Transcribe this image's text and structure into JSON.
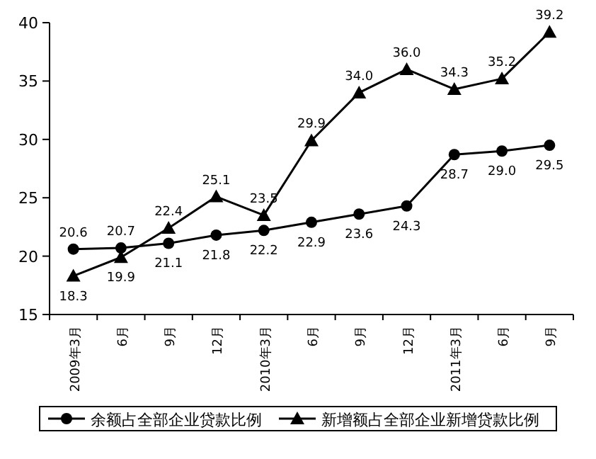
{
  "chart_data": {
    "type": "line",
    "categories": [
      "2009年3月",
      "6月",
      "9月",
      "12月",
      "2010年3月",
      "6月",
      "9月",
      "12月",
      "2011年3月",
      "6月",
      "9月"
    ],
    "series": [
      {
        "name": "余额占全部企业贷款比例",
        "color": "#000000",
        "marker": "circle",
        "values": [
          20.6,
          20.7,
          21.1,
          21.8,
          22.2,
          22.9,
          23.6,
          24.3,
          28.7,
          29.0,
          29.5
        ],
        "value_labels": [
          "20.6",
          "20.7",
          "21.1",
          "21.8",
          "22.2",
          "22.9",
          "23.6",
          "24.3",
          "28.7",
          "29.0",
          "29.5"
        ]
      },
      {
        "name": "新增额占全部企业新增贷款比例",
        "color": "#000000",
        "marker": "triangle",
        "values": [
          18.3,
          19.9,
          22.4,
          25.1,
          23.5,
          29.9,
          34.0,
          36.0,
          34.3,
          35.2,
          39.2
        ],
        "value_labels": [
          "18.3",
          "19.9",
          "22.4",
          "25.1",
          "23.5",
          "29.9",
          "34.0",
          "36.0",
          "34.3",
          "35.2",
          "39.2"
        ]
      }
    ],
    "ylim": [
      15,
      40
    ],
    "yticks": [
      15,
      20,
      25,
      30,
      35,
      40
    ],
    "grid": false,
    "legend": "bottom",
    "line_style": "solid"
  }
}
